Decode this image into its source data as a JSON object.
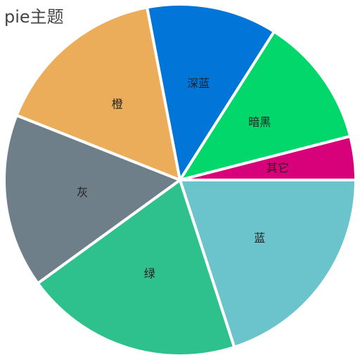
{
  "chart_data": {
    "type": "pie",
    "title": "pie主题",
    "slices": [
      {
        "name": "蓝",
        "value": 20,
        "color": "#6bc3cc"
      },
      {
        "name": "绿",
        "value": 20,
        "color": "#2ec18e"
      },
      {
        "name": "灰",
        "value": 16,
        "color": "#6e7f89"
      },
      {
        "name": "橙",
        "value": 16,
        "color": "#ecad5a"
      },
      {
        "name": "深蓝",
        "value": 12,
        "color": "#0275d8"
      },
      {
        "name": "暗黑",
        "value": 12,
        "color": "#01d76a"
      },
      {
        "name": "其它",
        "value": 4,
        "color": "#d7017a"
      }
    ],
    "legend": "none"
  }
}
